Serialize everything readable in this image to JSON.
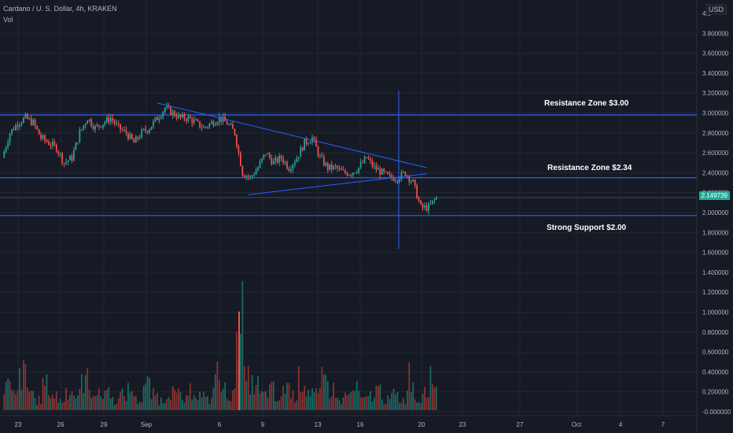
{
  "header": {
    "title": "Cardano / U. S. Dollar, 4h, KRAKEN",
    "volume_label": "Vol",
    "currency": "USD"
  },
  "chart_data": {
    "type": "candlestick",
    "price_axis": {
      "ticks": [
        "3.800000",
        "3.600000",
        "3.400000",
        "3.200000",
        "3.000000",
        "2.800000",
        "2.600000",
        "2.400000",
        "2.200000",
        "2.000000",
        "1.800000",
        "1.600000",
        "1.400000",
        "1.200000",
        "1.000000",
        "0.800000",
        "0.600000",
        "0.400000",
        "0.200000",
        "-0.000000"
      ],
      "top_partial": "4.0",
      "current_price": "2.149739"
    },
    "time_axis": {
      "ticks": [
        "23",
        "26",
        "29",
        "Sep",
        "6",
        "9",
        "13",
        "16",
        "20",
        "23",
        "27",
        "Oct",
        "4",
        "7"
      ]
    },
    "annotations": {
      "resistance_high": {
        "label": "Resistance Zone $3.00",
        "price": 2.98
      },
      "resistance_mid": {
        "label": "Resistance Zone $2.34",
        "price": 2.35
      },
      "support": {
        "label": "Strong Support $2.00",
        "price": 1.97
      },
      "reference_line_price": 2.15
    },
    "candle_path": [
      2.55,
      2.8,
      2.9,
      2.95,
      2.9,
      2.75,
      2.7,
      2.65,
      2.5,
      2.55,
      2.8,
      2.95,
      2.85,
      2.9,
      2.95,
      2.85,
      2.8,
      2.7,
      2.8,
      2.85,
      2.95,
      3.05,
      3.0,
      2.95,
      2.95,
      2.9,
      2.85,
      2.9,
      2.95,
      2.9,
      2.8,
      2.4,
      2.35,
      2.45,
      2.6,
      2.5,
      2.55,
      2.45,
      2.55,
      2.7,
      2.75,
      2.55,
      2.45,
      2.45,
      2.4,
      2.4,
      2.45,
      2.55,
      2.45,
      2.4,
      2.35,
      2.35,
      2.4,
      2.3,
      2.05,
      2.05,
      2.15
    ],
    "volume_levels": [
      0.25,
      0.15,
      0.35,
      0.2,
      0.1,
      0.25,
      0.15,
      0.1,
      0.2,
      0.15,
      0.3,
      0.2,
      0.15,
      0.2,
      0.1,
      0.15,
      0.2,
      0.1,
      0.25,
      0.15,
      0.1,
      0.2,
      0.15,
      0.1,
      0.2,
      0.15,
      0.1,
      0.35,
      0.2,
      0.15,
      0.99,
      0.3,
      0.25,
      0.15,
      0.2,
      0.1,
      0.25,
      0.15,
      0.3,
      0.2,
      0.15,
      0.3,
      0.2,
      0.1,
      0.15,
      0.2,
      0.1,
      0.15,
      0.2,
      0.1,
      0.15,
      0.1,
      0.35,
      0.1,
      0.25,
      0.3,
      0.15
    ]
  },
  "colors": {
    "background": "#161a25",
    "up": "#26a69a",
    "down": "#ef5350",
    "line": "#2962ff",
    "grid": "#232733",
    "axis_text": "#b2b5be"
  }
}
